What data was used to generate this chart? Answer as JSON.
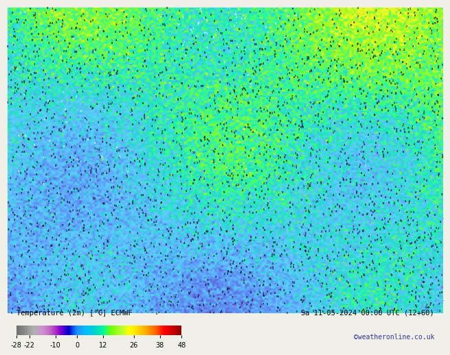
{
  "title_left": "Temperature (2m) [°C] ECMWF",
  "title_right": "Sa 11-05-2024 00:00 UTC (12+60)",
  "subtitle_right": "©weatheronline.co.uk",
  "colorbar_ticks": [
    -28,
    -22,
    -10,
    0,
    12,
    26,
    38,
    48
  ],
  "colorbar_colors": [
    "#6d6d6d",
    "#8c8c8c",
    "#a8a8a8",
    "#c0c0c0",
    "#d4a0d4",
    "#bf5fbf",
    "#9400d3",
    "#0000cd",
    "#1e90ff",
    "#00bfff",
    "#00ced1",
    "#00fa9a",
    "#7cfc00",
    "#adff2f",
    "#ffff00",
    "#ffd700",
    "#ffa500",
    "#ff6600",
    "#ff0000",
    "#cc0000",
    "#990000"
  ],
  "bg_color": "#ffff00",
  "map_bg": "#ffff66",
  "bottom_bar_color": "#f0f0e8",
  "fig_width": 6.34,
  "fig_height": 4.9
}
